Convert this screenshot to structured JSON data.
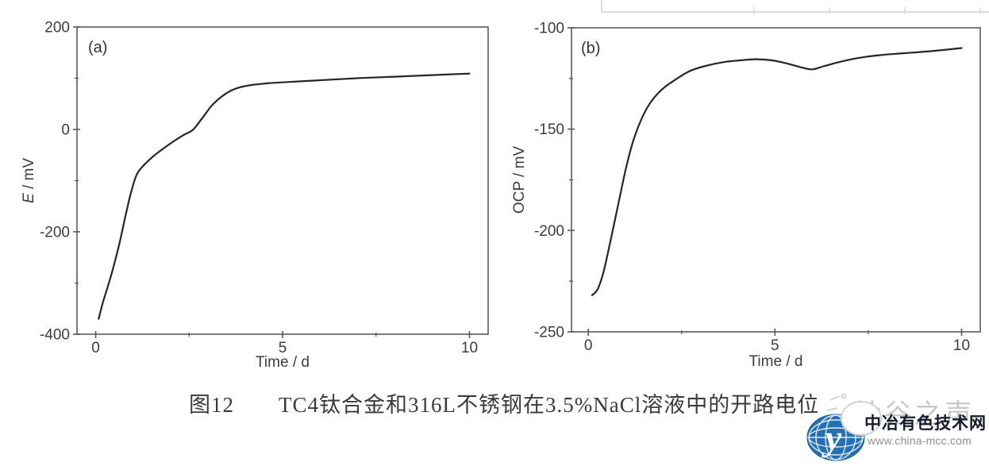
{
  "figure": {
    "caption_label": "图12",
    "caption_text": "TC4钛合金和316L不锈钢在3.5%NaCl溶液中的开路电位"
  },
  "watermark": {
    "text": "钛谷之声"
  },
  "logo": {
    "name": "中冶有色技术网",
    "url": "www.china-mcc.com",
    "monogram": "y",
    "globe_color": "#2470b3"
  },
  "chart_data": [
    {
      "type": "line",
      "panel_label": "(a)",
      "xlabel": "Time / d",
      "ylabel": "E / mV",
      "ylabel_italic_first": true,
      "xlim": [
        -0.5,
        10.5
      ],
      "ylim": [
        -400,
        200
      ],
      "x_major_ticks": [
        0,
        5,
        10
      ],
      "x_minor_ticks": [
        2.5,
        7.5
      ],
      "y_major_ticks": [
        200,
        0,
        -200,
        -400
      ],
      "y_minor_ticks": [
        100,
        -100,
        -300
      ],
      "grid": false,
      "legend": "none",
      "series": [
        {
          "name": "TC4钛合金",
          "points": [
            [
              0.08,
              -370
            ],
            [
              0.2,
              -336
            ],
            [
              0.35,
              -301
            ],
            [
              0.5,
              -262
            ],
            [
              0.65,
              -218
            ],
            [
              0.8,
              -168
            ],
            [
              0.95,
              -122
            ],
            [
              1.1,
              -88
            ],
            [
              1.3,
              -69
            ],
            [
              1.55,
              -52
            ],
            [
              1.8,
              -38
            ],
            [
              2.05,
              -25
            ],
            [
              2.35,
              -11
            ],
            [
              2.6,
              -1
            ],
            [
              2.85,
              22
            ],
            [
              3.1,
              46
            ],
            [
              3.35,
              63
            ],
            [
              3.6,
              75
            ],
            [
              3.85,
              82
            ],
            [
              4.2,
              87
            ],
            [
              4.6,
              90
            ],
            [
              5.0,
              92
            ],
            [
              6.0,
              96
            ],
            [
              7.0,
              100
            ],
            [
              8.0,
              103
            ],
            [
              9.0,
              106
            ],
            [
              10.0,
              109
            ]
          ]
        }
      ]
    },
    {
      "type": "line",
      "panel_label": "(b)",
      "xlabel": "Time / d",
      "ylabel": "OCP / mV",
      "ylabel_italic_first": false,
      "xlim": [
        -0.45,
        10.5
      ],
      "ylim": [
        -250,
        -100
      ],
      "x_major_ticks": [
        0,
        5,
        10
      ],
      "x_minor_ticks": [
        2.5,
        7.5
      ],
      "y_major_ticks": [
        -100,
        -150,
        -200,
        -250
      ],
      "y_minor_ticks": [
        -125,
        -175,
        -225
      ],
      "grid": false,
      "legend": "none",
      "series": [
        {
          "name": "316L不锈钢",
          "points": [
            [
              0.1,
              -232
            ],
            [
              0.25,
              -229
            ],
            [
              0.4,
              -221
            ],
            [
              0.55,
              -209
            ],
            [
              0.7,
              -196
            ],
            [
              0.85,
              -183
            ],
            [
              1.0,
              -170
            ],
            [
              1.2,
              -156
            ],
            [
              1.45,
              -144
            ],
            [
              1.7,
              -136
            ],
            [
              2.0,
              -130
            ],
            [
              2.3,
              -126
            ],
            [
              2.7,
              -121.5
            ],
            [
              3.1,
              -119
            ],
            [
              3.6,
              -117
            ],
            [
              4.1,
              -116
            ],
            [
              4.5,
              -115.5
            ],
            [
              4.9,
              -116
            ],
            [
              5.3,
              -117.5
            ],
            [
              5.7,
              -119.5
            ],
            [
              6.0,
              -120.5
            ],
            [
              6.3,
              -119
            ],
            [
              6.7,
              -117
            ],
            [
              7.2,
              -115
            ],
            [
              7.8,
              -113.5
            ],
            [
              8.5,
              -112.5
            ],
            [
              9.2,
              -111.5
            ],
            [
              10.0,
              -110
            ]
          ]
        }
      ]
    }
  ]
}
